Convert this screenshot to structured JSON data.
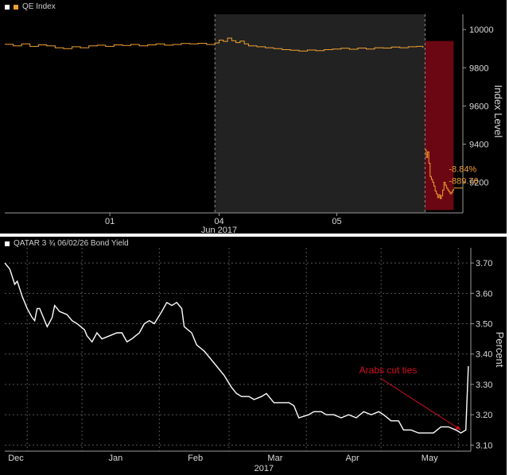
{
  "chart_data": [
    {
      "type": "line",
      "legend": "QE Index",
      "ylabel": "Index Level",
      "ylim": [
        9040,
        10080
      ],
      "yticks": [
        9200,
        9400,
        9600,
        9800,
        10000
      ],
      "xlim": [
        0,
        1.09
      ],
      "xticks": [
        {
          "pos": 0.25,
          "label": "01"
        },
        {
          "pos": 0.51,
          "label": "04"
        },
        {
          "pos": 0.79,
          "label": "05"
        }
      ],
      "xlabel": "Jun 2017",
      "sessions": [
        {
          "x_start": 0,
          "x_end": 0.5,
          "label": "Jun 1"
        },
        {
          "x_start": 0.5,
          "x_end": 1.0,
          "label": "Jun 4"
        },
        {
          "x_start": 1.0,
          "x_end": 1.09,
          "label": "Jun 5"
        }
      ],
      "series": [
        {
          "color": "#f0a030",
          "points": [
            [
              0.0,
              9923
            ],
            [
              0.02,
              9915
            ],
            [
              0.04,
              9925
            ],
            [
              0.06,
              9912
            ],
            [
              0.08,
              9920
            ],
            [
              0.1,
              9915
            ],
            [
              0.12,
              9905
            ],
            [
              0.14,
              9900
            ],
            [
              0.16,
              9910
            ],
            [
              0.18,
              9905
            ],
            [
              0.2,
              9915
            ],
            [
              0.22,
              9918
            ],
            [
              0.24,
              9912
            ],
            [
              0.26,
              9920
            ],
            [
              0.28,
              9917
            ],
            [
              0.3,
              9922
            ],
            [
              0.32,
              9915
            ],
            [
              0.34,
              9920
            ],
            [
              0.36,
              9925
            ],
            [
              0.38,
              9918
            ],
            [
              0.4,
              9922
            ],
            [
              0.42,
              9927
            ],
            [
              0.44,
              9925
            ],
            [
              0.46,
              9928
            ],
            [
              0.48,
              9922
            ],
            [
              0.5,
              9930
            ],
            [
              0.51,
              9945
            ],
            [
              0.52,
              9938
            ],
            [
              0.53,
              9955
            ],
            [
              0.54,
              9942
            ],
            [
              0.55,
              9932
            ],
            [
              0.56,
              9940
            ],
            [
              0.57,
              9925
            ],
            [
              0.58,
              9915
            ],
            [
              0.6,
              9910
            ],
            [
              0.62,
              9905
            ],
            [
              0.64,
              9900
            ],
            [
              0.66,
              9895
            ],
            [
              0.68,
              9892
            ],
            [
              0.7,
              9888
            ],
            [
              0.72,
              9893
            ],
            [
              0.74,
              9890
            ],
            [
              0.76,
              9895
            ],
            [
              0.78,
              9898
            ],
            [
              0.8,
              9902
            ],
            [
              0.82,
              9897
            ],
            [
              0.84,
              9903
            ],
            [
              0.86,
              9898
            ],
            [
              0.88,
              9905
            ],
            [
              0.9,
              9903
            ],
            [
              0.92,
              9908
            ],
            [
              0.94,
              9905
            ],
            [
              0.96,
              9910
            ],
            [
              0.98,
              9912
            ],
            [
              0.995,
              9905
            ]
          ]
        },
        {
          "color": "#f0a030",
          "points": [
            [
              1.0,
              9370
            ],
            [
              1.003,
              9330
            ],
            [
              1.006,
              9360
            ],
            [
              1.009,
              9300
            ],
            [
              1.012,
              9230
            ],
            [
              1.015,
              9215
            ],
            [
              1.018,
              9200
            ],
            [
              1.021,
              9180
            ],
            [
              1.024,
              9155
            ],
            [
              1.027,
              9140
            ],
            [
              1.03,
              9120
            ],
            [
              1.033,
              9135
            ],
            [
              1.036,
              9115
            ],
            [
              1.039,
              9130
            ],
            [
              1.042,
              9160
            ],
            [
              1.045,
              9200
            ],
            [
              1.048,
              9185
            ],
            [
              1.051,
              9170
            ],
            [
              1.054,
              9160
            ],
            [
              1.057,
              9150
            ],
            [
              1.06,
              9140
            ],
            [
              1.063,
              9148
            ],
            [
              1.066,
              9160
            ],
            [
              1.068,
              9165
            ]
          ]
        }
      ],
      "last_value": 9170,
      "highlight": {
        "x_start": 1.0,
        "x_end": 1.068,
        "y_low": 9055,
        "y_high": 9940,
        "color": "#6b0712"
      },
      "annotations": [
        "-8.84%",
        "-889.76"
      ]
    },
    {
      "type": "line",
      "legend": "QATAR 3 ¾ 06/02/26 Bond Yield",
      "ylabel": "Percent",
      "ylim": [
        3.08,
        3.75
      ],
      "yticks": [
        3.1,
        3.2,
        3.3,
        3.4,
        3.5,
        3.6,
        3.7
      ],
      "ytick_labels": [
        "3.10",
        "3.20",
        "3.30",
        "3.40",
        "3.50",
        "3.60",
        "3.70"
      ],
      "xlim": [
        "2016-12-01",
        "2017-06-06"
      ],
      "xticks": [
        {
          "date": "2016-12-01",
          "label": "Dec"
        },
        {
          "date": "2017-01-10",
          "label": "Jan"
        },
        {
          "date": "2017-02-11",
          "label": "Feb"
        },
        {
          "date": "2017-03-15",
          "label": "Mar"
        },
        {
          "date": "2017-04-15",
          "label": "Apr"
        },
        {
          "date": "2017-05-16",
          "label": "May"
        }
      ],
      "gridlines": [
        "2016-12-10",
        "2017-01-01",
        "2017-02-01",
        "2017-03-01",
        "2017-04-01",
        "2017-05-01",
        "2017-06-01"
      ],
      "xlabel": "2017",
      "series": [
        {
          "color": "#ffffff",
          "points": [
            [
              "2016-12-01",
              3.7
            ],
            [
              "2016-12-03",
              3.68
            ],
            [
              "2016-12-05",
              3.63
            ],
            [
              "2016-12-06",
              3.64
            ],
            [
              "2016-12-08",
              3.59
            ],
            [
              "2016-12-10",
              3.55
            ],
            [
              "2016-12-12",
              3.52
            ],
            [
              "2016-12-13",
              3.51
            ],
            [
              "2016-12-14",
              3.55
            ],
            [
              "2016-12-15",
              3.55
            ],
            [
              "2016-12-18",
              3.49
            ],
            [
              "2016-12-20",
              3.52
            ],
            [
              "2016-12-21",
              3.56
            ],
            [
              "2016-12-23",
              3.54
            ],
            [
              "2016-12-26",
              3.53
            ],
            [
              "2016-12-28",
              3.51
            ],
            [
              "2016-12-30",
              3.5
            ],
            [
              "2017-01-02",
              3.48
            ],
            [
              "2017-01-03",
              3.46
            ],
            [
              "2017-01-05",
              3.44
            ],
            [
              "2017-01-07",
              3.47
            ],
            [
              "2017-01-09",
              3.45
            ],
            [
              "2017-01-12",
              3.46
            ],
            [
              "2017-01-15",
              3.47
            ],
            [
              "2017-01-17",
              3.47
            ],
            [
              "2017-01-19",
              3.44
            ],
            [
              "2017-01-21",
              3.45
            ],
            [
              "2017-01-24",
              3.47
            ],
            [
              "2017-01-26",
              3.5
            ],
            [
              "2017-01-28",
              3.51
            ],
            [
              "2017-01-30",
              3.5
            ],
            [
              "2017-02-02",
              3.54
            ],
            [
              "2017-02-04",
              3.57
            ],
            [
              "2017-02-06",
              3.56
            ],
            [
              "2017-02-08",
              3.57
            ],
            [
              "2017-02-10",
              3.55
            ],
            [
              "2017-02-11",
              3.49
            ],
            [
              "2017-02-14",
              3.47
            ],
            [
              "2017-02-16",
              3.43
            ],
            [
              "2017-02-19",
              3.41
            ],
            [
              "2017-02-21",
              3.39
            ],
            [
              "2017-02-24",
              3.36
            ],
            [
              "2017-02-27",
              3.33
            ],
            [
              "2017-03-02",
              3.29
            ],
            [
              "2017-03-04",
              3.27
            ],
            [
              "2017-03-06",
              3.26
            ],
            [
              "2017-03-09",
              3.26
            ],
            [
              "2017-03-11",
              3.25
            ],
            [
              "2017-03-14",
              3.26
            ],
            [
              "2017-03-16",
              3.27
            ],
            [
              "2017-03-19",
              3.24
            ],
            [
              "2017-03-22",
              3.24
            ],
            [
              "2017-03-25",
              3.24
            ],
            [
              "2017-03-27",
              3.23
            ],
            [
              "2017-03-29",
              3.19
            ],
            [
              "2017-04-02",
              3.2
            ],
            [
              "2017-04-04",
              3.21
            ],
            [
              "2017-04-07",
              3.21
            ],
            [
              "2017-04-09",
              3.2
            ],
            [
              "2017-04-12",
              3.2
            ],
            [
              "2017-04-15",
              3.19
            ],
            [
              "2017-04-18",
              3.2
            ],
            [
              "2017-04-21",
              3.19
            ],
            [
              "2017-04-24",
              3.21
            ],
            [
              "2017-04-27",
              3.2
            ],
            [
              "2017-04-30",
              3.21
            ],
            [
              "2017-05-02",
              3.2
            ],
            [
              "2017-05-05",
              3.18
            ],
            [
              "2017-05-08",
              3.18
            ],
            [
              "2017-05-10",
              3.15
            ],
            [
              "2017-05-13",
              3.15
            ],
            [
              "2017-05-16",
              3.14
            ],
            [
              "2017-05-19",
              3.14
            ],
            [
              "2017-05-22",
              3.14
            ],
            [
              "2017-05-25",
              3.16
            ],
            [
              "2017-05-28",
              3.16
            ],
            [
              "2017-05-31",
              3.15
            ],
            [
              "2017-06-02",
              3.14
            ],
            [
              "2017-06-04",
              3.15
            ],
            [
              "2017-06-05",
              3.36
            ]
          ]
        }
      ],
      "annotation": {
        "text": "Arabs cut ties",
        "color": "#d40f1f",
        "arrow_to": [
          "2017-06-02",
          3.15
        ]
      }
    }
  ]
}
